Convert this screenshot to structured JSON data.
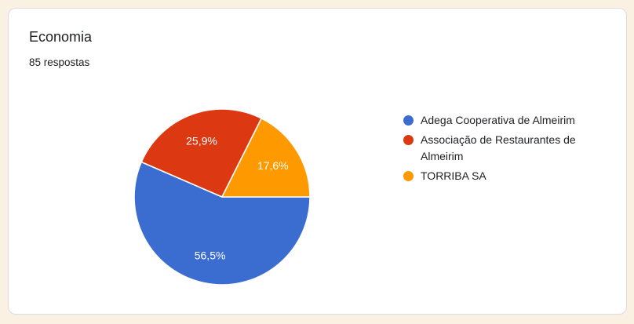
{
  "card": {
    "title": "Economia",
    "subtitle": "85 respostas"
  },
  "chart_data": {
    "type": "pie",
    "title": "Economia",
    "responses_text": "85 respostas",
    "total_responses": 85,
    "labels": [
      "Adega Cooperativa de Almeirim",
      "Associação de Restaurantes de Almeirim",
      "TORRIBA SA"
    ],
    "values_pct": [
      56.5,
      25.9,
      17.6
    ],
    "slice_labels": [
      "56,5%",
      "25,9%",
      "17,6%"
    ],
    "colors": [
      "#3b6cd0",
      "#dc3912",
      "#ff9900"
    ],
    "start_angle_deg": 90,
    "label_radius_factor": 0.68,
    "legend_position": "right",
    "grid": false
  },
  "colors": {
    "page_background": "#faf1e2",
    "card_background": "#ffffff",
    "card_border": "#dadce0",
    "text": "#202124",
    "slice_label_text": "#ffffff",
    "slice_separator": "#ffffff"
  }
}
